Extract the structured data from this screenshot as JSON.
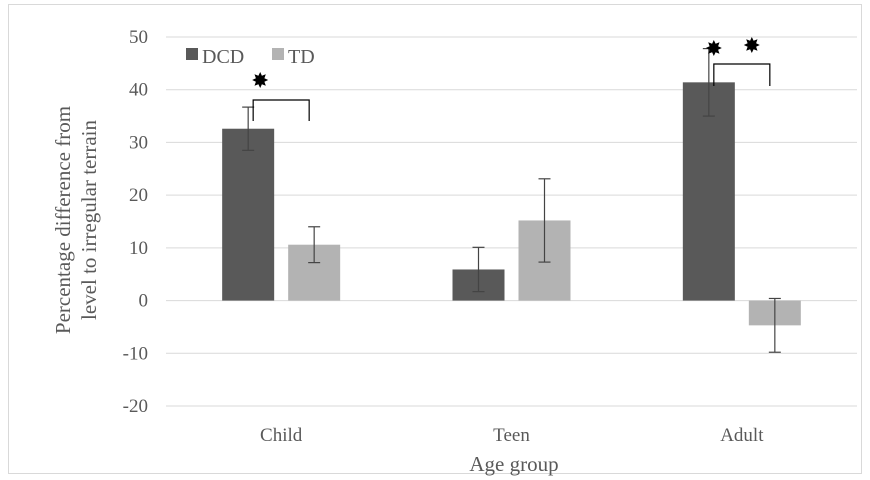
{
  "chart_data": {
    "type": "bar",
    "categories": [
      "Child",
      "Teen",
      "Adult"
    ],
    "series": [
      {
        "name": "DCD",
        "color": "#595959",
        "values": [
          32.6,
          5.9,
          41.4
        ],
        "errors": [
          4.1,
          4.2,
          6.4
        ]
      },
      {
        "name": "TD",
        "color": "#b3b3b3",
        "values": [
          10.6,
          15.2,
          -4.7
        ],
        "errors": [
          3.4,
          7.9,
          5.1
        ]
      }
    ],
    "xlabel": "Age group",
    "ylabel_lines": [
      "Percentage difference from",
      "level to irregular terrain"
    ],
    "ylim": [
      -20,
      50
    ],
    "yticks": [
      "50",
      "40",
      "30",
      "20",
      "10",
      "0",
      "-10",
      "-20"
    ],
    "ytick_values": [
      50,
      40,
      30,
      20,
      10,
      0,
      -10,
      -20
    ],
    "grid": true,
    "legend_position": "top-left",
    "significance": [
      {
        "category": "Child",
        "stars": 1
      },
      {
        "category": "Adult",
        "stars": 2
      }
    ],
    "gridline_color": "#d9d9d9",
    "text_color": "#595959"
  }
}
